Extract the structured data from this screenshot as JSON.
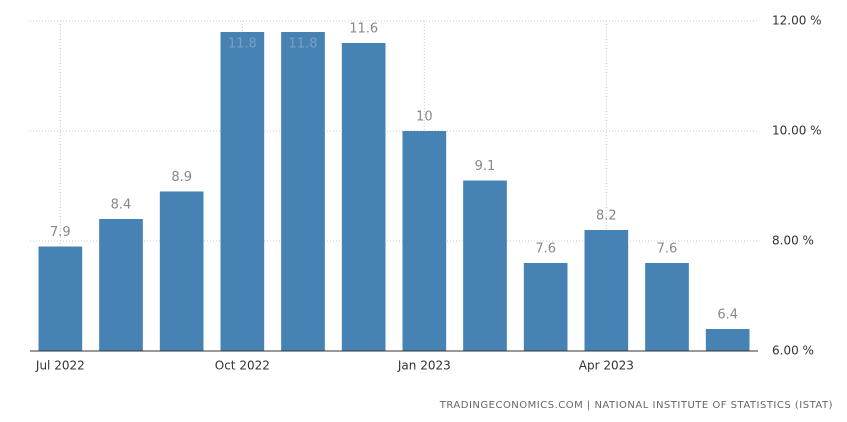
{
  "chart_data": {
    "type": "bar",
    "categories": [
      "Jul 2022",
      null,
      null,
      "Oct 2022",
      null,
      null,
      "Jan 2023",
      null,
      null,
      "Apr 2023",
      null,
      null
    ],
    "values": [
      7.9,
      8.4,
      8.9,
      11.8,
      11.8,
      11.6,
      10,
      9.1,
      7.6,
      8.2,
      7.6,
      6.4
    ],
    "color": "#4682b4",
    "ylim": [
      6,
      12
    ],
    "yticks": [
      {
        "value": 6,
        "label": "6.00 %"
      },
      {
        "value": 8,
        "label": "8.00 %"
      },
      {
        "value": 10,
        "label": "10.00 %"
      },
      {
        "value": 12,
        "label": "12.00 %"
      }
    ],
    "grid": true,
    "source": "TRADINGECONOMICS.COM | NATIONAL INSTITUTE OF STATISTICS (ISTAT)"
  }
}
